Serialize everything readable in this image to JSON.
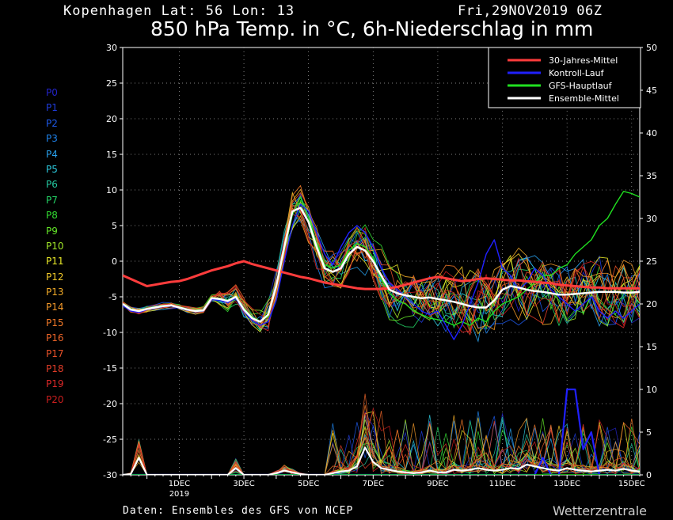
{
  "header": {
    "location": "Kopenhagen  Lat: 56 Lon: 13",
    "run": "Fri,29NOV2019 06Z",
    "title": "850 hPa Temp. in °C, 6h-Niederschlag in mm"
  },
  "footer": {
    "source": "Daten: Ensembles des GFS von NCEP",
    "brand": "Wetterzentrale"
  },
  "members": [
    {
      "name": "P0",
      "color": "#2323c8"
    },
    {
      "name": "P1",
      "color": "#1f3cdc"
    },
    {
      "name": "P2",
      "color": "#1e5aeb"
    },
    {
      "name": "P3",
      "color": "#1e82eb"
    },
    {
      "name": "P4",
      "color": "#28a0eb"
    },
    {
      "name": "P5",
      "color": "#2cc8dc"
    },
    {
      "name": "P6",
      "color": "#23c8a0"
    },
    {
      "name": "P7",
      "color": "#23d264"
    },
    {
      "name": "P8",
      "color": "#32dc32"
    },
    {
      "name": "P9",
      "color": "#64e628"
    },
    {
      "name": "P10",
      "color": "#a0e628"
    },
    {
      "name": "P11",
      "color": "#ebeb28"
    },
    {
      "name": "P12",
      "color": "#f0c828"
    },
    {
      "name": "P13",
      "color": "#f0aa28"
    },
    {
      "name": "P14",
      "color": "#f09628"
    },
    {
      "name": "P15",
      "color": "#f07828"
    },
    {
      "name": "P16",
      "color": "#eb6428"
    },
    {
      "name": "P17",
      "color": "#e65028"
    },
    {
      "name": "P18",
      "color": "#e13c28"
    },
    {
      "name": "P19",
      "color": "#dc2828"
    },
    {
      "name": "P20",
      "color": "#c81e1e"
    }
  ],
  "chart_data": {
    "type": "line",
    "x_start": "2019-11-29T06Z",
    "x_step": "6h",
    "x_ticks": [
      {
        "label": "1DEC",
        "sub": "2019",
        "step": 7
      },
      {
        "label": "3DEC",
        "sub": "",
        "step": 15
      },
      {
        "label": "5DEC",
        "sub": "",
        "step": 23
      },
      {
        "label": "7DEC",
        "sub": "",
        "step": 31
      },
      {
        "label": "9DEC",
        "sub": "",
        "step": 39
      },
      {
        "label": "11DEC",
        "sub": "",
        "step": 47
      },
      {
        "label": "13DEC",
        "sub": "",
        "step": 55
      },
      {
        "label": "15DEC",
        "sub": "",
        "step": 63
      }
    ],
    "y_left": {
      "min": -30,
      "max": 30,
      "ticks": [
        -30,
        -25,
        -20,
        -15,
        -10,
        -5,
        0,
        5,
        10,
        15,
        20,
        25,
        30
      ]
    },
    "y_right": {
      "min": 0,
      "max": 50,
      "ticks": [
        0,
        5,
        10,
        15,
        20,
        25,
        30,
        35,
        40,
        45,
        50
      ]
    },
    "grid": true,
    "legend_position": "top-right",
    "legend": [
      {
        "label": "30-Jahres-Mittel",
        "color": "#ff3c3c"
      },
      {
        "label": "Kontroll-Lauf",
        "color": "#2020ff"
      },
      {
        "label": "GFS-Hauptlauf",
        "color": "#20e020"
      },
      {
        "label": "Ensemble-Mittel",
        "color": "#ffffff"
      }
    ],
    "climate_mean": [
      -2,
      -2.5,
      -3,
      -3.5,
      -3.3,
      -3.1,
      -2.9,
      -2.8,
      -2.5,
      -2.1,
      -1.7,
      -1.3,
      -1,
      -0.7,
      -0.3,
      0,
      -0.4,
      -0.7,
      -1,
      -1.3,
      -1.6,
      -1.9,
      -2.2,
      -2.4,
      -2.7,
      -3,
      -3.2,
      -3.4,
      -3.6,
      -3.8,
      -3.9,
      -3.9,
      -3.9,
      -3.8,
      -3.6,
      -3.3,
      -3,
      -2.7,
      -2.4,
      -2.2,
      -2.4,
      -2.6,
      -2.8,
      -2.7,
      -2.5,
      -2.4,
      -2.5,
      -2.6,
      -2.7,
      -2.7,
      -2.8,
      -2.9,
      -3,
      -3.1,
      -3.3,
      -3.4,
      -3.5,
      -3.6,
      -3.7,
      -3.7,
      -3.8,
      -3.8,
      -3.8,
      -3.8,
      -3.8
    ],
    "ensemble_mean_temp": [
      -6,
      -6.8,
      -7,
      -6.7,
      -6.5,
      -6.3,
      -6.2,
      -6.5,
      -6.8,
      -7,
      -6.9,
      -5.2,
      -5.3,
      -5.6,
      -5,
      -6.8,
      -8,
      -8.5,
      -7.5,
      -3.5,
      2,
      7,
      7.5,
      5.5,
      2,
      -1,
      -1.5,
      -1,
      1,
      2,
      1.5,
      0,
      -2,
      -4,
      -4.5,
      -4.8,
      -5,
      -5.2,
      -5.1,
      -5.3,
      -5.5,
      -5.7,
      -6,
      -6.3,
      -6.5,
      -6.5,
      -5.5,
      -4,
      -3.5,
      -3.7,
      -4,
      -4.2,
      -4.3,
      -4.5,
      -4.7,
      -4.7,
      -4.6,
      -4.5,
      -4.4,
      -4.3,
      -4.3,
      -4.3,
      -4.4,
      -4.4,
      -4.3
    ],
    "control_temp": [
      -6.2,
      -7,
      -7.2,
      -6.8,
      -6.6,
      -6.4,
      -6.3,
      -6.6,
      -6.9,
      -7,
      -7,
      -5.4,
      -5.5,
      -5.8,
      -5.2,
      -7,
      -8.3,
      -9,
      -8.5,
      -5.5,
      0,
      5,
      8,
      7,
      4,
      1,
      -0.5,
      2,
      4,
      5,
      4,
      2,
      -1,
      -3,
      -4,
      -5,
      -6,
      -7,
      -7.5,
      -7,
      -9,
      -11,
      -9,
      -6,
      -3,
      1,
      3,
      -1,
      -2,
      -4,
      -3,
      -1,
      -2,
      -4,
      -5,
      -6,
      -7,
      -6,
      -5,
      -7,
      -8,
      -7,
      -8,
      -7,
      -6
    ],
    "gfs_temp": [
      -6.1,
      -6.9,
      -7.1,
      -6.6,
      -6.4,
      -6.2,
      -6.2,
      -6.4,
      -6.7,
      -7,
      -6.8,
      -5.1,
      -5.2,
      -5.5,
      -4.9,
      -6.6,
      -7.8,
      -8.4,
      -7.8,
      -3.8,
      1.5,
      6.5,
      9,
      6,
      2.5,
      -0.5,
      -1,
      -0.5,
      1.5,
      2.5,
      2,
      0.5,
      -2.5,
      -4.5,
      -5.5,
      -6,
      -7,
      -7.5,
      -8,
      -8.2,
      -8.5,
      -9,
      -8.5,
      -9,
      -8,
      -8.5,
      -7,
      -6,
      -5.5,
      -5,
      -4,
      -3,
      -2,
      -2,
      -1,
      -0.5,
      1,
      2,
      3,
      5,
      6,
      8,
      9.8,
      9.5,
      9
    ],
    "ensemble_mean_precip": [
      0,
      0.1,
      2,
      0,
      0,
      0,
      0,
      0,
      0,
      0,
      0,
      0,
      0,
      0,
      0.8,
      0,
      0,
      0,
      0,
      0.2,
      0.5,
      0.3,
      0.1,
      0,
      0,
      0,
      0.2,
      0.4,
      0.5,
      1,
      3.2,
      1.5,
      0.8,
      0.6,
      0.4,
      0.3,
      0.2,
      0.3,
      0.5,
      0.3,
      0.3,
      0.6,
      0.5,
      0.6,
      0.8,
      0.6,
      0.5,
      0.6,
      0.8,
      0.7,
      1.2,
      1,
      0.8,
      0.6,
      0.5,
      0.8,
      0.6,
      0.5,
      0.4,
      0.5,
      0.6,
      0.5,
      0.7,
      0.5,
      0.4
    ],
    "control_precip": [
      0,
      0,
      0,
      0,
      0,
      0,
      0,
      0,
      0,
      0,
      0,
      0,
      0,
      0,
      0,
      0,
      0,
      0,
      0,
      0,
      0,
      0,
      0,
      0,
      0,
      0,
      0,
      0,
      0,
      0,
      0,
      0,
      0,
      0,
      0,
      0,
      0,
      0,
      0,
      0,
      0,
      0,
      0,
      0,
      0,
      0,
      0,
      0,
      0,
      0,
      0,
      0,
      2,
      0,
      0,
      10,
      10,
      3,
      5,
      0,
      0,
      0,
      0,
      0,
      0
    ],
    "gfs_precip": [
      0,
      0,
      0,
      0,
      0,
      0,
      0,
      0,
      0,
      0,
      0,
      0,
      0,
      0,
      0,
      0,
      0,
      0,
      0,
      0,
      0,
      0,
      0,
      0,
      0,
      0,
      0,
      0,
      0,
      0,
      0,
      0,
      0,
      0,
      0,
      0,
      0,
      0,
      0,
      0,
      0,
      0,
      0,
      0,
      0,
      0,
      0,
      0,
      0,
      0,
      0,
      0,
      0,
      0,
      0,
      0,
      0,
      0,
      0,
      0,
      0,
      0,
      0,
      0,
      0
    ]
  }
}
